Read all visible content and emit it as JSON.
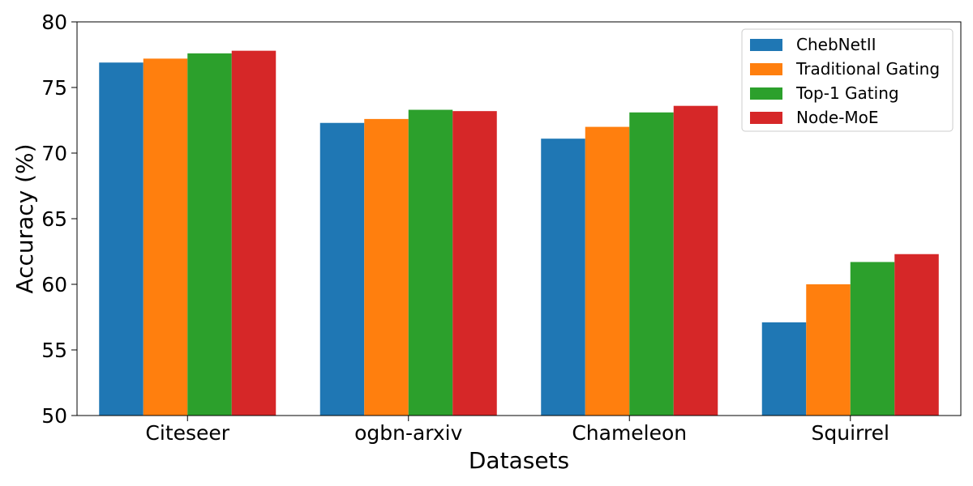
{
  "chart_data": {
    "type": "bar",
    "title": "",
    "xlabel": "Datasets",
    "ylabel": "Accuracy (%)",
    "ylim": [
      50,
      80
    ],
    "yticks": [
      50,
      55,
      60,
      65,
      70,
      75,
      80
    ],
    "categories": [
      "Citeseer",
      "ogbn-arxiv",
      "Chameleon",
      "Squirrel"
    ],
    "series": [
      {
        "name": "ChebNetII",
        "color": "#1f77b4",
        "values": [
          76.9,
          72.3,
          71.1,
          57.1
        ]
      },
      {
        "name": "Traditional Gating",
        "color": "#ff7f0e",
        "values": [
          77.2,
          72.6,
          72.0,
          60.0
        ]
      },
      {
        "name": "Top-1 Gating",
        "color": "#2ca02c",
        "values": [
          77.6,
          73.3,
          73.1,
          61.7
        ]
      },
      {
        "name": "Node-MoE",
        "color": "#d62728",
        "values": [
          77.8,
          73.2,
          73.6,
          62.3
        ]
      }
    ],
    "grid": false,
    "legend": "top-right"
  }
}
